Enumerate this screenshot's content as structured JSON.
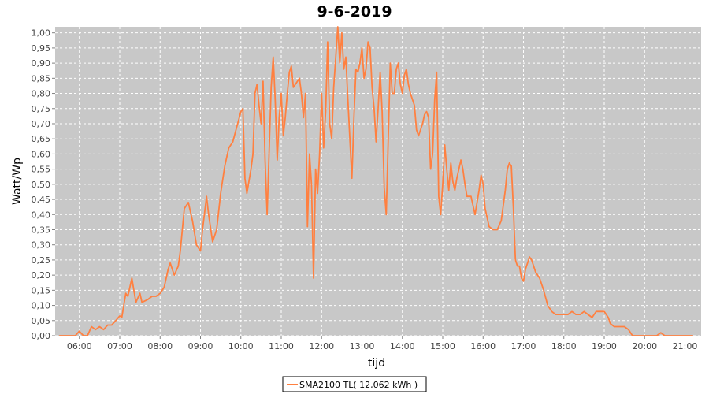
{
  "chart_data": {
    "type": "line",
    "title": "9-6-2019",
    "xlabel": "tijd",
    "ylabel": "Watt/Wp",
    "xlim": [
      5.4,
      21.4
    ],
    "ylim": [
      0,
      1.02
    ],
    "grid": true,
    "legend_position": "bottom",
    "x_ticks": [
      "06:00",
      "07:00",
      "08:00",
      "09:00",
      "10:00",
      "11:00",
      "12:00",
      "13:00",
      "14:00",
      "15:00",
      "16:00",
      "17:00",
      "18:00",
      "19:00",
      "20:00",
      "21:00"
    ],
    "x_tick_values": [
      6,
      7,
      8,
      9,
      10,
      11,
      12,
      13,
      14,
      15,
      16,
      17,
      18,
      19,
      20,
      21
    ],
    "y_ticks": [
      "0,00",
      "0,05",
      "0,10",
      "0,15",
      "0,20",
      "0,25",
      "0,30",
      "0,35",
      "0,40",
      "0,45",
      "0,50",
      "0,55",
      "0,60",
      "0,65",
      "0,70",
      "0,75",
      "0,80",
      "0,85",
      "0,90",
      "0,95",
      "1,00"
    ],
    "y_tick_values": [
      0,
      0.05,
      0.1,
      0.15,
      0.2,
      0.25,
      0.3,
      0.35,
      0.4,
      0.45,
      0.5,
      0.55,
      0.6,
      0.65,
      0.7,
      0.75,
      0.8,
      0.85,
      0.9,
      0.95,
      1.0
    ],
    "series": [
      {
        "name": "SMA2100 TL( 12,062 kWh )",
        "color": "#ff8040",
        "points": [
          [
            5.5,
            0
          ],
          [
            5.9,
            0
          ],
          [
            6.0,
            0.015
          ],
          [
            6.1,
            0
          ],
          [
            6.2,
            0
          ],
          [
            6.3,
            0.03
          ],
          [
            6.4,
            0.02
          ],
          [
            6.5,
            0.03
          ],
          [
            6.6,
            0.02
          ],
          [
            6.7,
            0.035
          ],
          [
            6.8,
            0.035
          ],
          [
            6.9,
            0.05
          ],
          [
            7.0,
            0.065
          ],
          [
            7.05,
            0.06
          ],
          [
            7.1,
            0.1
          ],
          [
            7.15,
            0.14
          ],
          [
            7.2,
            0.13
          ],
          [
            7.3,
            0.19
          ],
          [
            7.35,
            0.15
          ],
          [
            7.4,
            0.11
          ],
          [
            7.5,
            0.14
          ],
          [
            7.55,
            0.11
          ],
          [
            7.7,
            0.12
          ],
          [
            7.8,
            0.13
          ],
          [
            7.9,
            0.13
          ],
          [
            8.0,
            0.14
          ],
          [
            8.1,
            0.16
          ],
          [
            8.2,
            0.22
          ],
          [
            8.25,
            0.24
          ],
          [
            8.3,
            0.22
          ],
          [
            8.35,
            0.2
          ],
          [
            8.45,
            0.23
          ],
          [
            8.5,
            0.28
          ],
          [
            8.6,
            0.42
          ],
          [
            8.7,
            0.44
          ],
          [
            8.8,
            0.38
          ],
          [
            8.9,
            0.3
          ],
          [
            9.0,
            0.28
          ],
          [
            9.05,
            0.35
          ],
          [
            9.15,
            0.46
          ],
          [
            9.2,
            0.4
          ],
          [
            9.3,
            0.31
          ],
          [
            9.4,
            0.35
          ],
          [
            9.5,
            0.47
          ],
          [
            9.6,
            0.56
          ],
          [
            9.7,
            0.62
          ],
          [
            9.8,
            0.64
          ],
          [
            9.9,
            0.69
          ],
          [
            10.0,
            0.74
          ],
          [
            10.05,
            0.75
          ],
          [
            10.1,
            0.52
          ],
          [
            10.15,
            0.47
          ],
          [
            10.25,
            0.55
          ],
          [
            10.3,
            0.6
          ],
          [
            10.35,
            0.8
          ],
          [
            10.4,
            0.83
          ],
          [
            10.45,
            0.76
          ],
          [
            10.5,
            0.7
          ],
          [
            10.55,
            0.84
          ],
          [
            10.6,
            0.58
          ],
          [
            10.65,
            0.4
          ],
          [
            10.75,
            0.82
          ],
          [
            10.8,
            0.92
          ],
          [
            10.85,
            0.78
          ],
          [
            10.9,
            0.58
          ],
          [
            10.95,
            0.72
          ],
          [
            11.0,
            0.8
          ],
          [
            11.05,
            0.66
          ],
          [
            11.1,
            0.72
          ],
          [
            11.15,
            0.8
          ],
          [
            11.2,
            0.87
          ],
          [
            11.25,
            0.89
          ],
          [
            11.3,
            0.82
          ],
          [
            11.4,
            0.84
          ],
          [
            11.45,
            0.85
          ],
          [
            11.5,
            0.8
          ],
          [
            11.55,
            0.72
          ],
          [
            11.6,
            0.8
          ],
          [
            11.65,
            0.36
          ],
          [
            11.7,
            0.6
          ],
          [
            11.75,
            0.5
          ],
          [
            11.8,
            0.19
          ],
          [
            11.85,
            0.55
          ],
          [
            11.9,
            0.47
          ],
          [
            11.95,
            0.6
          ],
          [
            12.0,
            0.8
          ],
          [
            12.05,
            0.62
          ],
          [
            12.1,
            0.74
          ],
          [
            12.15,
            0.97
          ],
          [
            12.2,
            0.7
          ],
          [
            12.25,
            0.65
          ],
          [
            12.3,
            0.82
          ],
          [
            12.35,
            0.92
          ],
          [
            12.4,
            1.02
          ],
          [
            12.45,
            0.9
          ],
          [
            12.5,
            1.0
          ],
          [
            12.55,
            0.88
          ],
          [
            12.6,
            0.92
          ],
          [
            12.65,
            0.78
          ],
          [
            12.7,
            0.65
          ],
          [
            12.75,
            0.52
          ],
          [
            12.8,
            0.72
          ],
          [
            12.85,
            0.88
          ],
          [
            12.9,
            0.87
          ],
          [
            12.95,
            0.9
          ],
          [
            13.0,
            0.95
          ],
          [
            13.05,
            0.85
          ],
          [
            13.1,
            0.88
          ],
          [
            13.15,
            0.97
          ],
          [
            13.2,
            0.95
          ],
          [
            13.25,
            0.82
          ],
          [
            13.3,
            0.75
          ],
          [
            13.35,
            0.64
          ],
          [
            13.4,
            0.75
          ],
          [
            13.45,
            0.87
          ],
          [
            13.5,
            0.74
          ],
          [
            13.55,
            0.49
          ],
          [
            13.6,
            0.4
          ],
          [
            13.7,
            0.9
          ],
          [
            13.75,
            0.8
          ],
          [
            13.8,
            0.8
          ],
          [
            13.85,
            0.88
          ],
          [
            13.9,
            0.9
          ],
          [
            13.95,
            0.83
          ],
          [
            14.0,
            0.8
          ],
          [
            14.05,
            0.86
          ],
          [
            14.1,
            0.88
          ],
          [
            14.15,
            0.83
          ],
          [
            14.2,
            0.8
          ],
          [
            14.3,
            0.76
          ],
          [
            14.35,
            0.68
          ],
          [
            14.4,
            0.66
          ],
          [
            14.5,
            0.7
          ],
          [
            14.55,
            0.73
          ],
          [
            14.6,
            0.74
          ],
          [
            14.65,
            0.72
          ],
          [
            14.7,
            0.55
          ],
          [
            14.75,
            0.6
          ],
          [
            14.8,
            0.78
          ],
          [
            14.85,
            0.87
          ],
          [
            14.9,
            0.46
          ],
          [
            14.95,
            0.4
          ],
          [
            15.0,
            0.5
          ],
          [
            15.05,
            0.63
          ],
          [
            15.1,
            0.55
          ],
          [
            15.15,
            0.48
          ],
          [
            15.2,
            0.57
          ],
          [
            15.25,
            0.51
          ],
          [
            15.3,
            0.48
          ],
          [
            15.35,
            0.52
          ],
          [
            15.45,
            0.58
          ],
          [
            15.5,
            0.55
          ],
          [
            15.55,
            0.5
          ],
          [
            15.6,
            0.46
          ],
          [
            15.7,
            0.46
          ],
          [
            15.8,
            0.4
          ],
          [
            15.85,
            0.44
          ],
          [
            15.9,
            0.48
          ],
          [
            15.95,
            0.53
          ],
          [
            16.0,
            0.5
          ],
          [
            16.05,
            0.42
          ],
          [
            16.15,
            0.36
          ],
          [
            16.25,
            0.35
          ],
          [
            16.35,
            0.35
          ],
          [
            16.45,
            0.38
          ],
          [
            16.55,
            0.48
          ],
          [
            16.6,
            0.55
          ],
          [
            16.65,
            0.57
          ],
          [
            16.7,
            0.56
          ],
          [
            16.75,
            0.42
          ],
          [
            16.8,
            0.25
          ],
          [
            16.85,
            0.23
          ],
          [
            16.9,
            0.23
          ],
          [
            16.95,
            0.19
          ],
          [
            17.0,
            0.18
          ],
          [
            17.05,
            0.22
          ],
          [
            17.15,
            0.26
          ],
          [
            17.2,
            0.25
          ],
          [
            17.3,
            0.21
          ],
          [
            17.4,
            0.19
          ],
          [
            17.5,
            0.15
          ],
          [
            17.6,
            0.1
          ],
          [
            17.7,
            0.08
          ],
          [
            17.8,
            0.07
          ],
          [
            17.9,
            0.07
          ],
          [
            18.0,
            0.07
          ],
          [
            18.1,
            0.07
          ],
          [
            18.2,
            0.08
          ],
          [
            18.3,
            0.07
          ],
          [
            18.4,
            0.07
          ],
          [
            18.5,
            0.08
          ],
          [
            18.6,
            0.07
          ],
          [
            18.7,
            0.06
          ],
          [
            18.8,
            0.08
          ],
          [
            18.9,
            0.08
          ],
          [
            19.0,
            0.08
          ],
          [
            19.1,
            0.06
          ],
          [
            19.15,
            0.04
          ],
          [
            19.25,
            0.03
          ],
          [
            19.5,
            0.03
          ],
          [
            19.6,
            0.02
          ],
          [
            19.7,
            0
          ],
          [
            20.3,
            0
          ],
          [
            20.4,
            0.01
          ],
          [
            20.5,
            0
          ],
          [
            21.2,
            0
          ]
        ]
      }
    ]
  }
}
